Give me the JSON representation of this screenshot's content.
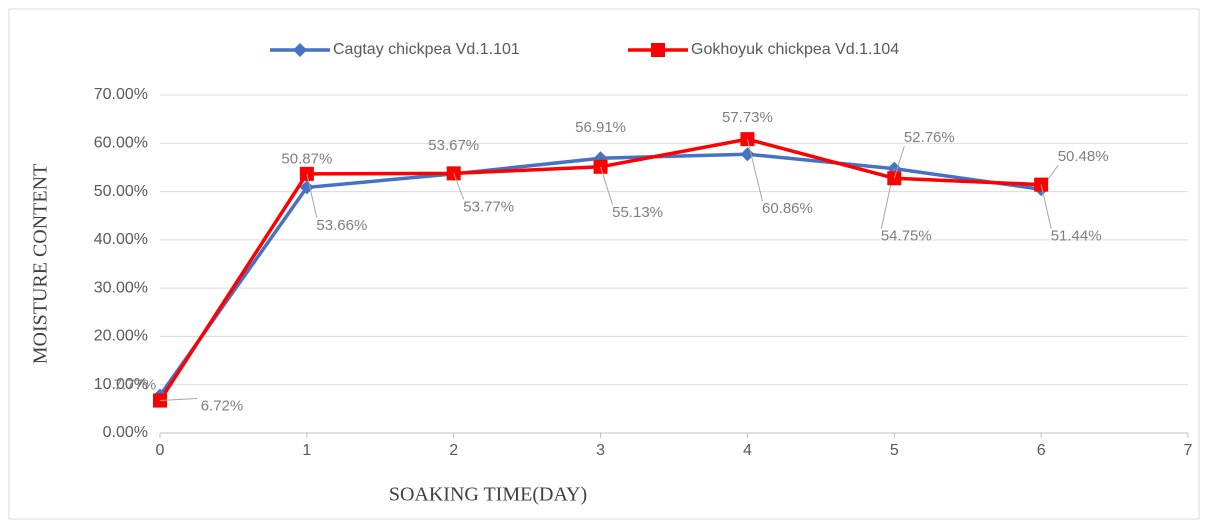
{
  "chart_data": {
    "type": "line",
    "x_label": "SOAKING TIME(DAY)",
    "y_label": "MOISTURE CONTENT",
    "x": [
      0,
      1,
      2,
      3,
      4,
      5,
      6
    ],
    "series": [
      {
        "name": "Cagtay chickpea Vd.1.101",
        "color": "#4472c4",
        "marker": "diamond",
        "values": [
          7.77,
          50.87,
          53.67,
          56.91,
          57.73,
          54.75,
          50.48
        ],
        "value_labels": [
          "7.77%",
          "50.87%",
          "53.67%",
          "56.91%",
          "57.73%",
          "54.75%",
          "50.48%"
        ]
      },
      {
        "name": "Gokhoyuk chickpea Vd.1.104",
        "color": "#ff0000",
        "marker": "square",
        "values": [
          6.72,
          53.66,
          53.77,
          55.13,
          60.86,
          52.76,
          51.44
        ],
        "value_labels": [
          "6.72%",
          "53.66%",
          "53.77%",
          "55.13%",
          "60.86%",
          "52.76%",
          "51.44%"
        ]
      }
    ],
    "xlim": [
      0,
      7
    ],
    "xticks": [
      0,
      1,
      2,
      3,
      4,
      5,
      6,
      7
    ],
    "ylim": [
      0,
      70
    ],
    "yticks": [
      {
        "value": 0,
        "label": "0.00%"
      },
      {
        "value": 10,
        "label": "10.00%"
      },
      {
        "value": 20,
        "label": "20.00%"
      },
      {
        "value": 30,
        "label": "30.00%"
      },
      {
        "value": 40,
        "label": "40.00%"
      },
      {
        "value": 50,
        "label": "50.00%"
      },
      {
        "value": 60,
        "label": "60.00%"
      },
      {
        "value": 70,
        "label": "70.00%"
      }
    ],
    "grid": true,
    "legend": "top"
  }
}
